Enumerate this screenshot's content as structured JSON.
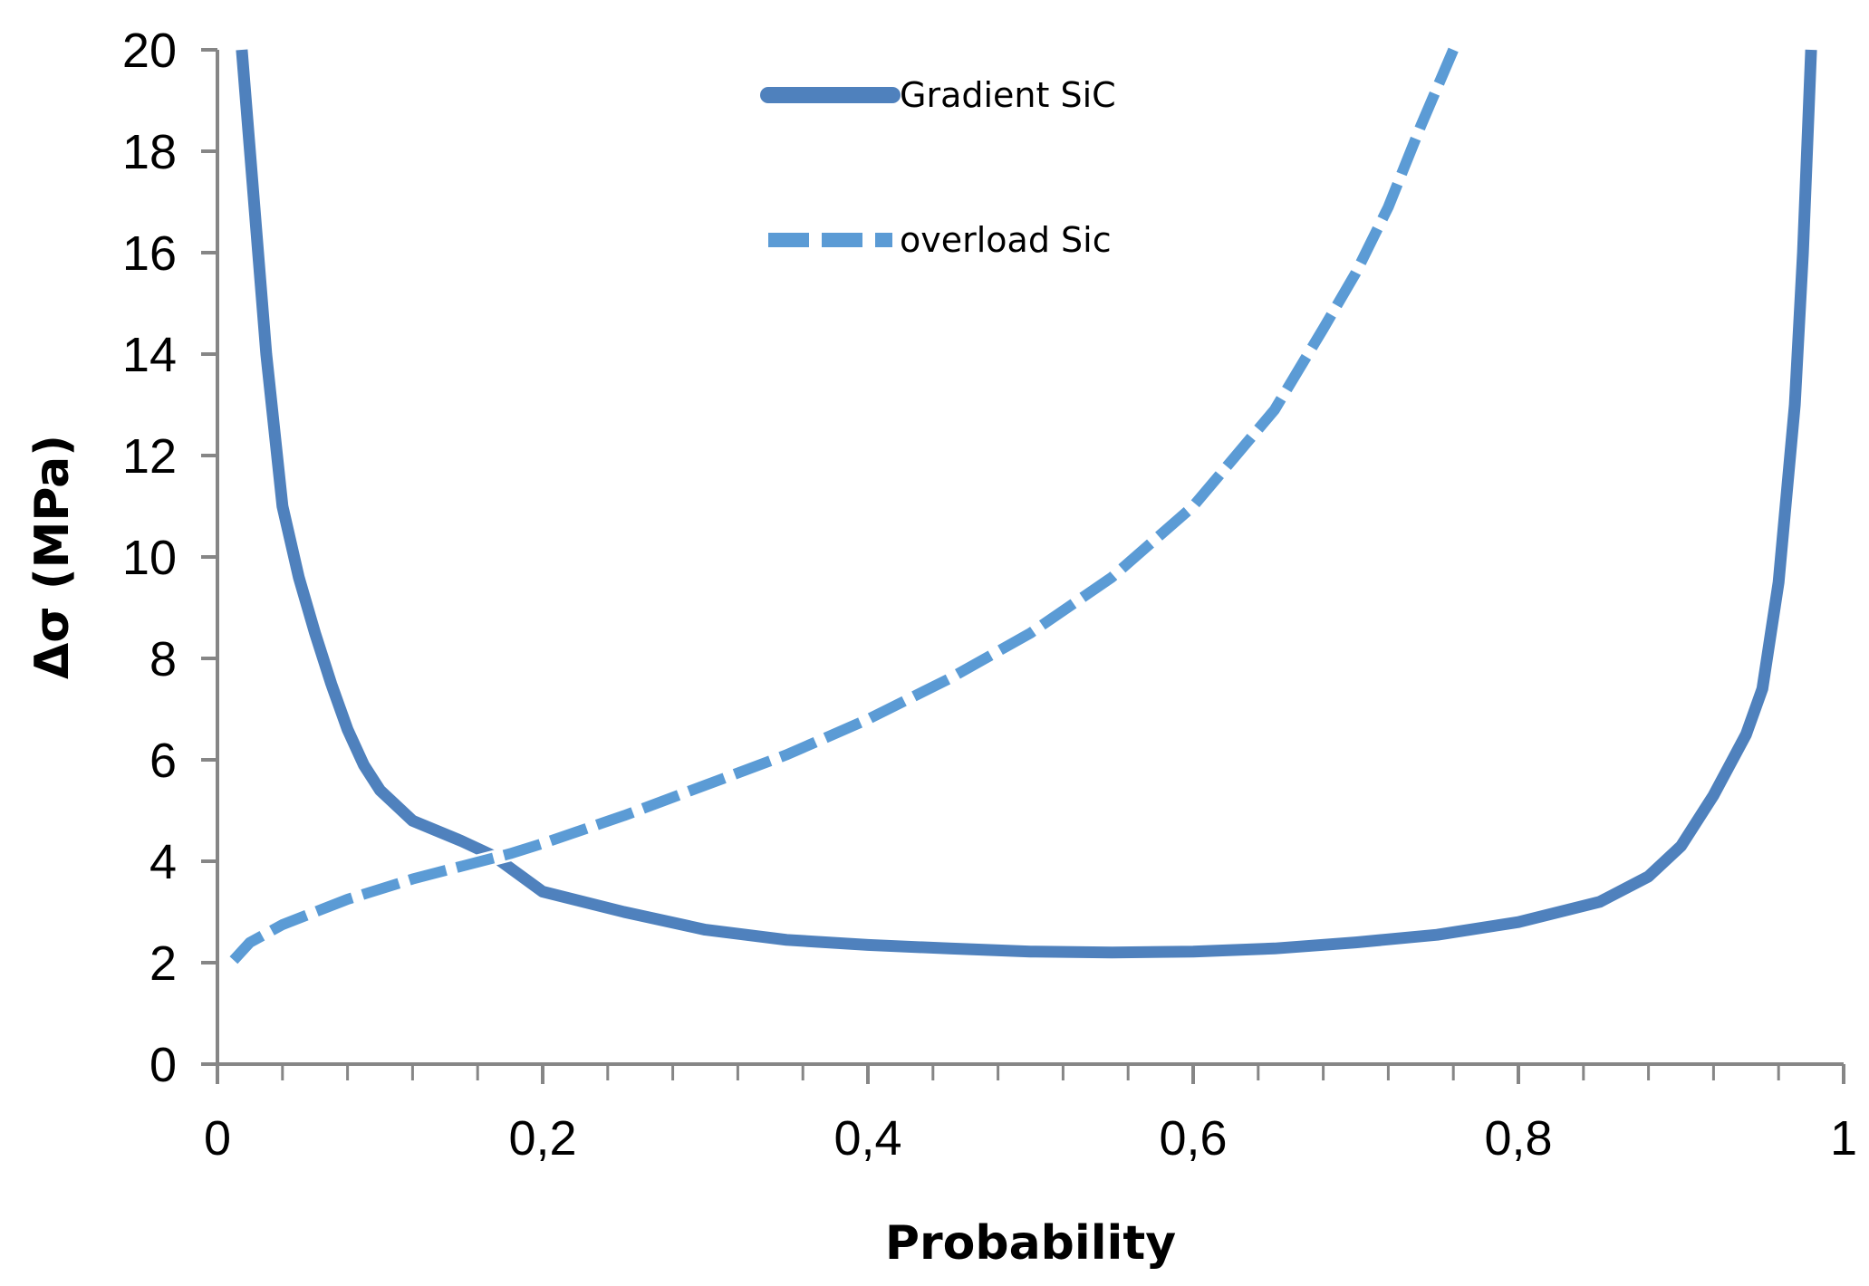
{
  "chart_data": {
    "type": "line",
    "title": "",
    "xlabel": "Probability",
    "ylabel": "Δσ (MPa)",
    "xlim": [
      0,
      1
    ],
    "ylim": [
      0,
      20
    ],
    "xticks": [
      0,
      0.2,
      0.4,
      0.6,
      0.8,
      1
    ],
    "xtick_labels": [
      "0",
      "0,2",
      "0,4",
      "0,6",
      "0,8",
      "1"
    ],
    "yticks": [
      0,
      2,
      4,
      6,
      8,
      10,
      12,
      14,
      16,
      18,
      20
    ],
    "ytick_labels": [
      "0",
      "2",
      "4",
      "6",
      "8",
      "10",
      "12",
      "14",
      "16",
      "18",
      "20"
    ],
    "x_minor_step": 0.04,
    "grid": false,
    "legend_position": "top-center",
    "series": [
      {
        "name": "Gradient SiC",
        "style": "solid",
        "color": "#4F81BD",
        "points": [
          [
            0.015,
            20.0
          ],
          [
            0.02,
            18.0
          ],
          [
            0.03,
            14.0
          ],
          [
            0.04,
            11.0
          ],
          [
            0.05,
            9.6
          ],
          [
            0.06,
            8.5
          ],
          [
            0.07,
            7.5
          ],
          [
            0.08,
            6.6
          ],
          [
            0.09,
            5.9
          ],
          [
            0.1,
            5.4
          ],
          [
            0.12,
            4.8
          ],
          [
            0.15,
            4.4
          ],
          [
            0.17,
            4.1
          ],
          [
            0.2,
            3.4
          ],
          [
            0.25,
            3.0
          ],
          [
            0.3,
            2.65
          ],
          [
            0.35,
            2.45
          ],
          [
            0.4,
            2.35
          ],
          [
            0.45,
            2.28
          ],
          [
            0.5,
            2.22
          ],
          [
            0.55,
            2.2
          ],
          [
            0.6,
            2.22
          ],
          [
            0.65,
            2.28
          ],
          [
            0.7,
            2.4
          ],
          [
            0.75,
            2.55
          ],
          [
            0.8,
            2.8
          ],
          [
            0.85,
            3.2
          ],
          [
            0.88,
            3.7
          ],
          [
            0.9,
            4.3
          ],
          [
            0.92,
            5.3
          ],
          [
            0.94,
            6.5
          ],
          [
            0.95,
            7.4
          ],
          [
            0.96,
            9.5
          ],
          [
            0.97,
            13.0
          ],
          [
            0.975,
            16.0
          ],
          [
            0.98,
            20.0
          ]
        ]
      },
      {
        "name": "overload Sic",
        "style": "dashed",
        "color": "#5B9BD5",
        "points": [
          [
            0.01,
            2.05
          ],
          [
            0.02,
            2.4
          ],
          [
            0.04,
            2.75
          ],
          [
            0.06,
            3.0
          ],
          [
            0.08,
            3.25
          ],
          [
            0.1,
            3.45
          ],
          [
            0.12,
            3.65
          ],
          [
            0.15,
            3.9
          ],
          [
            0.18,
            4.15
          ],
          [
            0.2,
            4.35
          ],
          [
            0.25,
            4.9
          ],
          [
            0.3,
            5.5
          ],
          [
            0.35,
            6.1
          ],
          [
            0.4,
            6.8
          ],
          [
            0.45,
            7.6
          ],
          [
            0.5,
            8.5
          ],
          [
            0.55,
            9.6
          ],
          [
            0.6,
            11.0
          ],
          [
            0.65,
            12.9
          ],
          [
            0.68,
            14.5
          ],
          [
            0.7,
            15.6
          ],
          [
            0.72,
            16.9
          ],
          [
            0.74,
            18.5
          ],
          [
            0.76,
            20.0
          ]
        ]
      }
    ]
  }
}
